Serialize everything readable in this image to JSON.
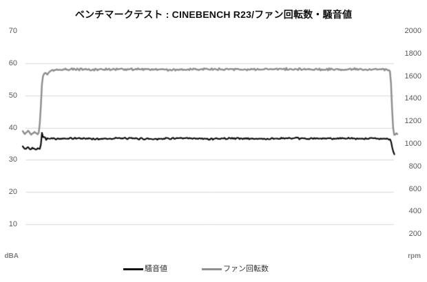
{
  "chart_data": {
    "type": "line",
    "title": "ベンチマークテスト : CINEBENCH R23/ファン回転数・騒音値",
    "legend_position": "bottom",
    "grid": "horizontal-only",
    "background_color": "#ffffff",
    "gridline_color": "#d9d9d9",
    "tick_label_color": "#595959",
    "unit_label_color": "#7f7f7f",
    "title_color": "#111111",
    "left_axis": {
      "unit": "dBA",
      "min": 0,
      "max": 70,
      "ticks": [
        70,
        60,
        50,
        40,
        30,
        20,
        10
      ],
      "gridline_ticks": [
        60,
        50,
        40,
        30,
        20,
        10
      ]
    },
    "right_axis": {
      "unit": "rpm",
      "min": 0,
      "max": 2000,
      "ticks": [
        2000,
        1800,
        1600,
        1400,
        1200,
        1000,
        800,
        600,
        400,
        200
      ]
    },
    "x_axis": {
      "visible": false,
      "description": "time during benchmark run, no labels shown"
    },
    "series": [
      {
        "name": "騒音値",
        "axis": "left",
        "color": "#0d0d0d",
        "line_width": 2.2,
        "noise_amplitude": 0.32,
        "summary": "idle ~33.5 dBA, load plateau ~36.6 dBA, end drop to ~31.7 dBA",
        "points": [
          [
            0,
            34.2
          ],
          [
            0.6,
            33.2
          ],
          [
            1.3,
            34.0
          ],
          [
            2.0,
            33.2
          ],
          [
            2.7,
            33.8
          ],
          [
            3.4,
            33.3
          ],
          [
            4.1,
            33.7
          ],
          [
            4.6,
            33.4
          ],
          [
            4.95,
            35.2
          ],
          [
            5.15,
            38.8
          ],
          [
            5.5,
            36.9
          ],
          [
            5.9,
            37.2
          ],
          [
            6.2,
            36.3
          ],
          [
            6.8,
            36.7
          ],
          [
            10,
            36.5
          ],
          [
            15,
            36.7
          ],
          [
            20,
            36.5
          ],
          [
            25,
            36.7
          ],
          [
            30,
            36.6
          ],
          [
            35,
            36.5
          ],
          [
            40,
            36.7
          ],
          [
            45,
            36.6
          ],
          [
            50,
            36.5
          ],
          [
            55,
            36.7
          ],
          [
            60,
            36.6
          ],
          [
            65,
            36.5
          ],
          [
            70,
            36.7
          ],
          [
            75,
            36.6
          ],
          [
            80,
            36.6
          ],
          [
            85,
            36.7
          ],
          [
            90,
            36.5
          ],
          [
            94,
            36.7
          ],
          [
            97.3,
            36.6
          ],
          [
            98.0,
            36.3
          ],
          [
            98.4,
            35.2
          ],
          [
            98.8,
            32.8
          ],
          [
            99.05,
            32.0
          ],
          [
            99.2,
            31.7
          ]
        ]
      },
      {
        "name": "ファン回転数",
        "axis": "right",
        "color": "#8f8f8f",
        "line_width": 2.5,
        "noise_amplitude": 11,
        "summary": "idle ~1095 rpm, load plateau ~1660 rpm, end drop to ~1085 rpm",
        "points": [
          [
            0,
            1112
          ],
          [
            0.7,
            1085
          ],
          [
            1.5,
            1108
          ],
          [
            2.3,
            1083
          ],
          [
            3.1,
            1102
          ],
          [
            3.8,
            1088
          ],
          [
            4.35,
            1098
          ],
          [
            4.7,
            1240
          ],
          [
            5.1,
            1520
          ],
          [
            5.45,
            1608
          ],
          [
            5.9,
            1632
          ],
          [
            6.4,
            1615
          ],
          [
            7.2,
            1645
          ],
          [
            8.5,
            1652
          ],
          [
            12,
            1660
          ],
          [
            20,
            1658
          ],
          [
            30,
            1662
          ],
          [
            40,
            1656
          ],
          [
            50,
            1662
          ],
          [
            60,
            1658
          ],
          [
            70,
            1663
          ],
          [
            80,
            1658
          ],
          [
            88,
            1662
          ],
          [
            94,
            1658
          ],
          [
            97.2,
            1660
          ],
          [
            98.0,
            1648
          ],
          [
            98.3,
            1540
          ],
          [
            98.6,
            1300
          ],
          [
            98.9,
            1120
          ],
          [
            99.15,
            1082
          ],
          [
            99.5,
            1090
          ],
          [
            100,
            1085
          ]
        ]
      }
    ]
  }
}
